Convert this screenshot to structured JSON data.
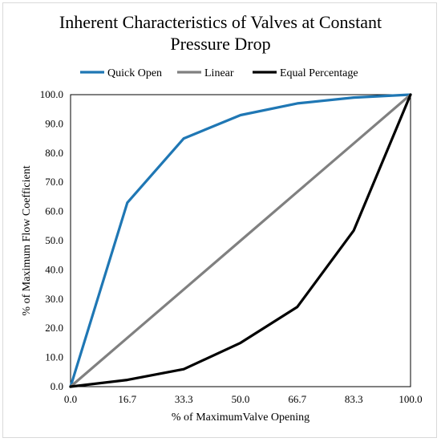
{
  "chart_data": {
    "type": "line",
    "title_line1": "Inherent Characteristics of Valves at Constant",
    "title_line2": "Pressure Drop",
    "xlabel": "% of MaximumValve Opening",
    "ylabel": "% of Maximum Flow Coefficient",
    "x": [
      0.0,
      16.7,
      33.3,
      50.0,
      66.7,
      83.3,
      100.0
    ],
    "x_tick_labels": [
      "0.0",
      "16.7",
      "33.3",
      "50.0",
      "66.7",
      "83.3",
      "100.0"
    ],
    "y_tick_labels": [
      "0.0",
      "10.0",
      "20.0",
      "30.0",
      "40.0",
      "50.0",
      "60.0",
      "70.0",
      "80.0",
      "90.0",
      "100.0"
    ],
    "xlim": [
      0,
      100
    ],
    "ylim": [
      0,
      100
    ],
    "grid": false,
    "legend_position": "top",
    "series": [
      {
        "name": "Quick Open",
        "color": "#1f77b4",
        "values": [
          0.0,
          63.0,
          85.0,
          93.0,
          97.0,
          99.0,
          100.0
        ]
      },
      {
        "name": "Linear",
        "color": "#808080",
        "values": [
          0.0,
          16.7,
          33.3,
          50.0,
          66.7,
          83.3,
          100.0
        ]
      },
      {
        "name": "Equal Percentage",
        "color": "#000000",
        "values": [
          0.0,
          2.3,
          6.0,
          15.0,
          27.3,
          53.5,
          100.0
        ]
      }
    ]
  }
}
